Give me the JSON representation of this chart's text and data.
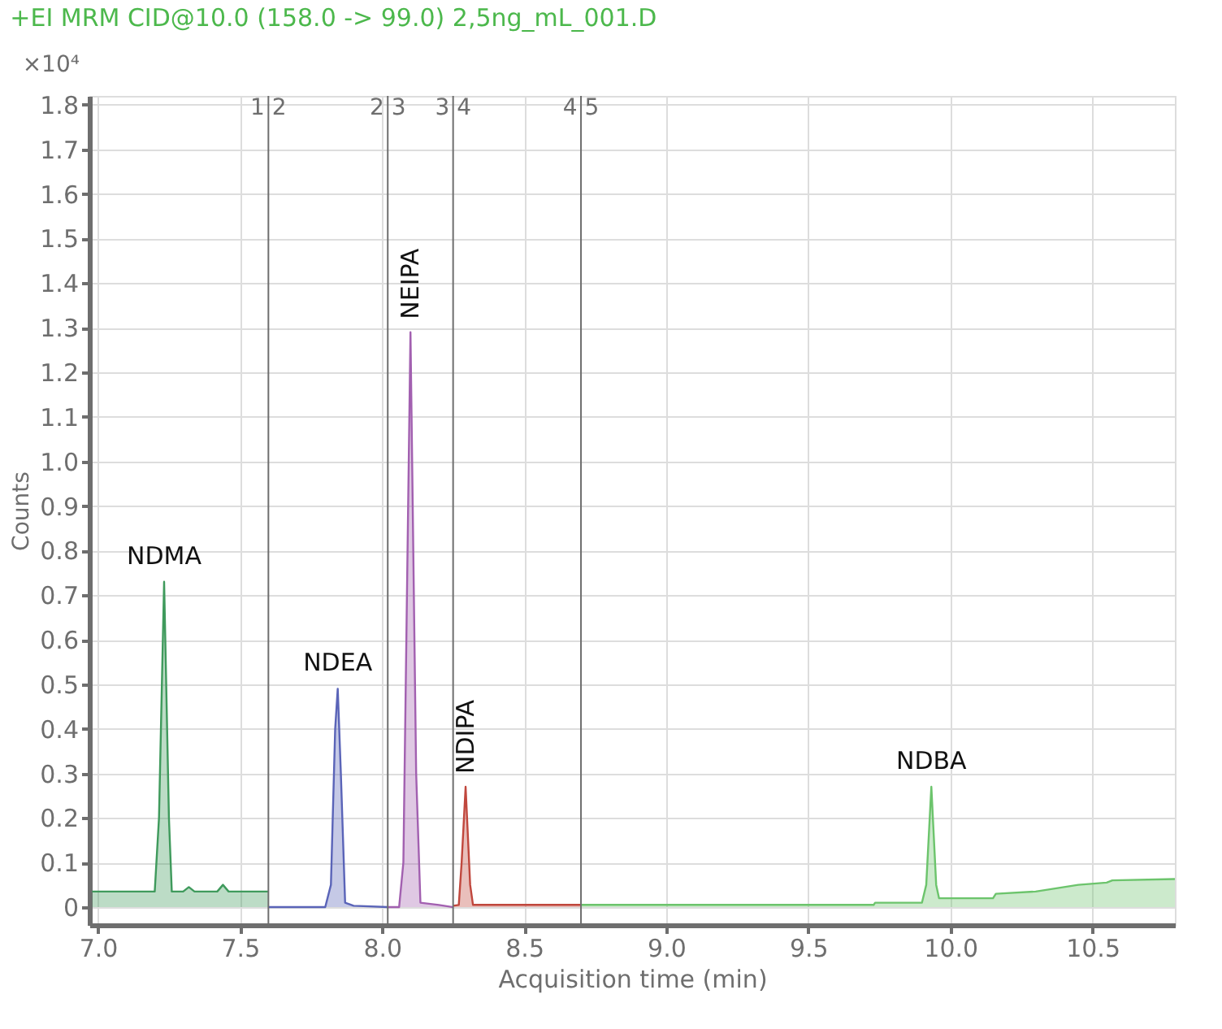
{
  "chart_data": {
    "type": "area",
    "title": "+EI MRM CID@10.0 (158.0 -> 99.0) 2,5ng_mL_001.D",
    "xlabel": "Acquisition time (min)",
    "ylabel": "Counts",
    "series": [
      {
        "color": "#3f9a5c",
        "x": [
          6.98,
          7.2,
          7.215,
          7.233,
          7.25,
          7.26,
          7.3,
          7.32,
          7.34,
          7.42,
          7.44,
          7.46,
          7.6
        ],
        "values": [
          0.035,
          0.035,
          0.2,
          0.73,
          0.2,
          0.035,
          0.035,
          0.045,
          0.035,
          0.035,
          0.05,
          0.035,
          0.035
        ]
      },
      {
        "color": "#5a64b8",
        "x": [
          7.6,
          7.8,
          7.82,
          7.835,
          7.844,
          7.855,
          7.87,
          7.9,
          8.02
        ],
        "values": [
          0,
          0,
          0.05,
          0.4,
          0.49,
          0.3,
          0.01,
          0.003,
          0
        ]
      },
      {
        "color": "#a260b0",
        "x": [
          8.02,
          8.06,
          8.075,
          8.1,
          8.12,
          8.135,
          8.2,
          8.25
        ],
        "values": [
          0,
          0,
          0.1,
          1.29,
          0.3,
          0.01,
          0.005,
          0
        ]
      },
      {
        "color": "#c0473d",
        "x": [
          8.25,
          8.27,
          8.28,
          8.294,
          8.31,
          8.32,
          8.5,
          8.7
        ],
        "values": [
          0.003,
          0.005,
          0.1,
          0.27,
          0.05,
          0.005,
          0.005,
          0.005
        ]
      },
      {
        "color": "#6cc46c",
        "x": [
          8.7,
          9.73,
          9.735,
          9.9,
          9.915,
          9.933,
          9.95,
          9.96,
          10.15,
          10.16,
          10.3,
          10.45,
          10.55,
          10.57,
          10.79
        ],
        "values": [
          0.005,
          0.005,
          0.01,
          0.01,
          0.05,
          0.27,
          0.05,
          0.02,
          0.02,
          0.03,
          0.035,
          0.05,
          0.055,
          0.06,
          0.063
        ]
      }
    ],
    "annotations": [
      {
        "text": "NDMA",
        "x": 7.233,
        "y": 0.73
      },
      {
        "text": "NDEA",
        "x": 7.844,
        "y": 0.49
      },
      {
        "text": "NEIPA",
        "x": 8.1,
        "y": 1.29
      },
      {
        "text": "NDIPA",
        "x": 8.294,
        "y": 0.27
      },
      {
        "text": "NDBA",
        "x": 9.933,
        "y": 0.27
      },
      "×10⁴",
      {
        "text": "1 2",
        "x": 7.6,
        "y": 1.8
      },
      {
        "text": "2 3",
        "x": 8.02,
        "y": 1.8
      },
      {
        "text": "3 4",
        "x": 8.25,
        "y": 1.8
      },
      {
        "text": "4 5",
        "x": 8.7,
        "y": 1.8
      }
    ],
    "ref_lines": [
      {
        "axis": "x",
        "value": 7.6
      },
      {
        "axis": "x",
        "value": 8.02
      },
      {
        "axis": "x",
        "value": 8.25
      },
      {
        "axis": "x",
        "value": 8.7
      }
    ],
    "xlim": [
      6.97,
      10.79
    ],
    "ylim": [
      -0.04,
      1.82
    ],
    "xticks": [
      {
        "value": 7,
        "label": "7.0"
      },
      7.5,
      {
        "value": 8,
        "label": "8.0"
      },
      8.5,
      {
        "value": 9,
        "label": "9.0"
      },
      9.5,
      {
        "value": 10,
        "label": "10.0"
      },
      10.5
    ],
    "yticks": [
      0,
      0.1,
      0.2,
      0.3,
      0.4,
      0.5,
      0.6,
      0.7,
      0.8,
      0.9,
      {
        "value": 1,
        "label": "1.0"
      },
      1.1,
      1.2,
      1.3,
      1.4,
      1.5,
      1.6,
      1.7,
      1.8
    ],
    "grid": true,
    "line_style": "solid"
  }
}
